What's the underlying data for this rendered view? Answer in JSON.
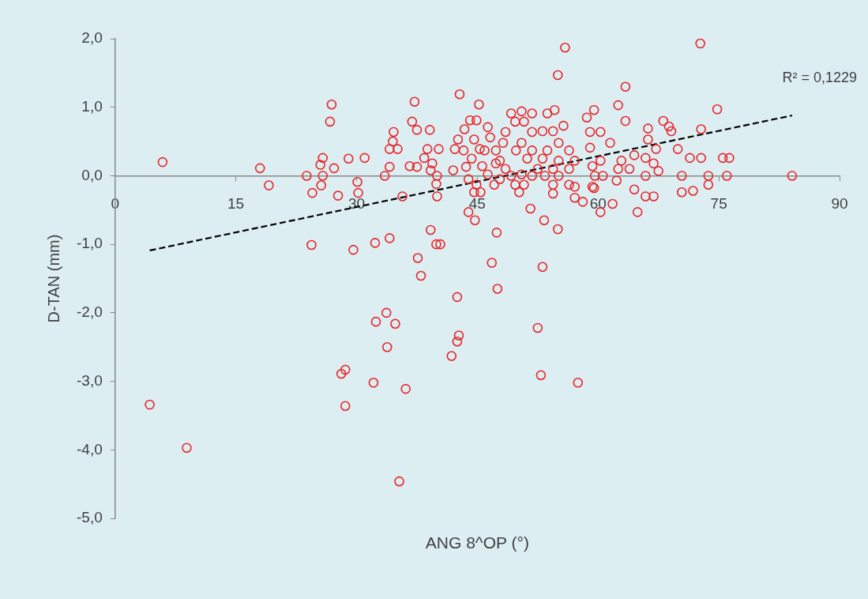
{
  "chart_data": {
    "type": "scatter",
    "xlabel": "ANG 8^OP (°)",
    "ylabel": "D-TAN (mm)",
    "xlim": [
      0,
      90
    ],
    "xticks": [
      0,
      15,
      30,
      45,
      60,
      75,
      90
    ],
    "ylim": [
      -5,
      2
    ],
    "yticks": [
      {
        "value": -5,
        "label": "-5,0"
      },
      {
        "value": -4,
        "label": "-4,0"
      },
      {
        "value": -3,
        "label": "-3,0"
      },
      {
        "value": -2,
        "label": "-2,0"
      },
      {
        "value": -1,
        "label": "-1,0"
      },
      {
        "value": 0,
        "label": "0,0"
      },
      {
        "value": 1,
        "label": "1,0"
      },
      {
        "value": 2,
        "label": "2,0"
      }
    ],
    "grid": false,
    "legend": false,
    "marker": "circle",
    "annotations": [
      "R² = 0,1229"
    ],
    "series": [
      {
        "type": "scatter",
        "color": "#e8262a",
        "x": [
          4.3,
          8.9,
          5.9,
          18.0,
          19.1,
          23.8,
          24.5,
          24.4,
          25.5,
          25.8,
          25.6,
          25.8,
          26.9,
          26.7,
          27.2,
          27.7,
          28.1,
          28.6,
          28.6,
          29.0,
          29.6,
          30.1,
          30.2,
          31.0,
          32.1,
          32.4,
          32.3,
          33.7,
          34.8,
          33.8,
          36.1,
          35.3,
          37.6,
          38.0,
          42.5,
          42.7,
          42.5,
          41.8,
          46.8,
          47.5,
          53.1,
          52.5,
          52.9,
          57.5,
          43.9,
          44.7,
          47.4,
          51.6,
          53.3,
          55.0,
          39.2,
          34.1,
          39.9,
          40.4,
          35.7,
          40.0,
          55.9,
          55.0,
          42.8,
          37.2,
          45.2,
          36.9,
          37.5,
          39.1,
          34.6,
          34.5,
          35.1,
          34.1,
          38.8,
          40.2,
          38.4,
          36.6,
          37.5,
          34.1,
          33.5,
          39.4,
          39.2,
          40.0,
          39.9,
          42.2,
          42.0,
          43.6,
          43.4,
          44.1,
          44.9,
          44.6,
          45.3,
          44.3,
          44.9,
          44.6,
          45.4,
          46.6,
          47.3,
          47.8,
          47.1,
          48.5,
          49.2,
          49.7,
          50.2,
          49.2,
          50.5,
          51.8,
          53.7,
          54.6,
          49.7,
          50.8,
          51.8,
          53.1,
          54.4,
          55.7,
          50.5,
          49.8,
          51.8,
          53.7,
          55.1,
          56.4,
          51.2,
          53.1,
          55.1,
          57.1,
          52.5,
          54.4,
          56.4,
          51.8,
          53.4,
          55.1,
          50.8,
          54.4,
          56.4,
          54.4,
          57.1,
          57.1,
          58.1,
          58.6,
          59.5,
          59.0,
          59.0,
          59.3,
          59.6,
          59.3,
          48.2,
          47.3,
          48.5,
          46.3,
          45.9,
          45.6,
          42.6,
          43.3,
          43.9,
          46.3,
          47.8,
          50.5,
          72.7,
          63.4,
          74.8,
          62.5,
          63.4,
          68.1,
          68.8,
          69.1,
          66.2,
          72.8,
          66.2,
          67.2,
          69.9,
          71.4,
          72.8,
          75.5,
          76.3,
          65.9,
          64.5,
          62.9,
          61.5,
          60.3,
          60.3,
          62.5,
          63.9,
          66.9,
          67.5,
          65.9,
          70.4,
          73.7,
          76.0,
          84.1,
          60.6,
          62.3,
          64.5,
          65.9,
          66.9,
          70.4,
          71.8,
          73.7,
          59.5,
          61.8,
          60.3,
          64.9
        ],
        "values": [
          -3.34,
          -3.97,
          0.2,
          0.11,
          -0.14,
          0.0,
          -0.25,
          -1.01,
          0.16,
          0.0,
          -0.14,
          0.26,
          1.04,
          0.79,
          0.11,
          -0.29,
          -2.89,
          -2.83,
          -3.36,
          0.25,
          -1.08,
          -0.09,
          -0.25,
          0.26,
          -3.02,
          -2.13,
          -0.98,
          -2.0,
          -2.16,
          -2.5,
          -3.11,
          -4.46,
          -1.2,
          -1.46,
          -1.77,
          -2.33,
          -2.42,
          -2.63,
          -1.27,
          -1.65,
          -1.33,
          -2.22,
          -2.91,
          -3.02,
          -0.53,
          -0.65,
          -0.83,
          -0.48,
          -0.65,
          -0.78,
          -0.79,
          -0.91,
          -1.0,
          -1.0,
          -0.3,
          -0.3,
          1.87,
          1.47,
          1.19,
          1.08,
          1.04,
          0.79,
          0.67,
          0.67,
          0.64,
          0.5,
          0.39,
          0.39,
          0.39,
          0.39,
          0.26,
          0.14,
          0.13,
          0.13,
          0.0,
          0.18,
          0.08,
          0.0,
          -0.12,
          0.39,
          0.08,
          0.13,
          0.68,
          0.81,
          0.81,
          0.53,
          0.39,
          0.25,
          -0.13,
          -0.24,
          -0.24,
          0.56,
          0.37,
          0.22,
          -0.13,
          0.1,
          0.0,
          -0.13,
          -0.24,
          0.91,
          0.94,
          0.91,
          0.91,
          0.96,
          0.79,
          0.79,
          0.64,
          0.65,
          0.65,
          0.73,
          0.48,
          0.37,
          0.37,
          0.37,
          0.48,
          0.37,
          0.25,
          0.25,
          0.22,
          0.22,
          0.1,
          0.1,
          0.1,
          0.0,
          0.0,
          0.0,
          -0.13,
          -0.13,
          -0.13,
          -0.26,
          -0.16,
          -0.32,
          -0.38,
          0.85,
          0.96,
          0.64,
          0.41,
          0.14,
          0.0,
          -0.16,
          0.48,
          0.18,
          0.64,
          0.71,
          0.37,
          0.14,
          0.53,
          0.37,
          -0.05,
          0.02,
          -0.05,
          0.02,
          1.93,
          1.3,
          0.97,
          1.03,
          0.8,
          0.8,
          0.72,
          0.65,
          0.69,
          0.68,
          0.53,
          0.39,
          0.39,
          0.26,
          0.26,
          0.26,
          0.26,
          0.26,
          0.3,
          0.22,
          0.48,
          0.64,
          0.22,
          0.1,
          0.1,
          0.18,
          0.07,
          0.0,
          0.0,
          0.0,
          0.0,
          0.0,
          0.0,
          -0.07,
          -0.2,
          -0.3,
          -0.3,
          -0.24,
          -0.22,
          -0.13,
          -0.18,
          -0.41,
          -0.53,
          -0.53
        ]
      },
      {
        "type": "line",
        "color": "#000000",
        "line_style": "dashed",
        "marker": "none",
        "x": [
          4.3,
          84.1
        ],
        "values": [
          -1.09,
          0.88
        ]
      }
    ]
  }
}
